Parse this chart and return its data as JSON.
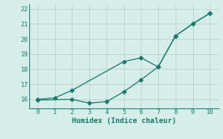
{
  "xlabel": "Humidex (Indice chaleur)",
  "bg_color": "#d6eeea",
  "grid_color": "#b8cece",
  "line_color": "#1a7a6e",
  "line1_x": [
    0,
    1,
    2,
    5,
    6,
    7,
    8,
    9,
    10
  ],
  "line1_y": [
    16.0,
    16.1,
    16.6,
    18.5,
    18.75,
    18.15,
    20.2,
    21.0,
    21.7
  ],
  "line2_x": [
    0,
    2,
    3,
    4,
    5,
    6,
    7,
    8,
    9,
    10
  ],
  "line2_y": [
    15.95,
    16.0,
    15.75,
    15.85,
    16.5,
    17.3,
    18.15,
    20.2,
    21.0,
    21.7
  ],
  "xlim": [
    -0.5,
    10.5
  ],
  "ylim": [
    15.4,
    22.3
  ],
  "xticks": [
    0,
    1,
    2,
    3,
    4,
    5,
    6,
    7,
    8,
    9,
    10
  ],
  "yticks": [
    16,
    17,
    18,
    19,
    20,
    21,
    22
  ],
  "markersize": 2.8,
  "linewidth": 1.0
}
